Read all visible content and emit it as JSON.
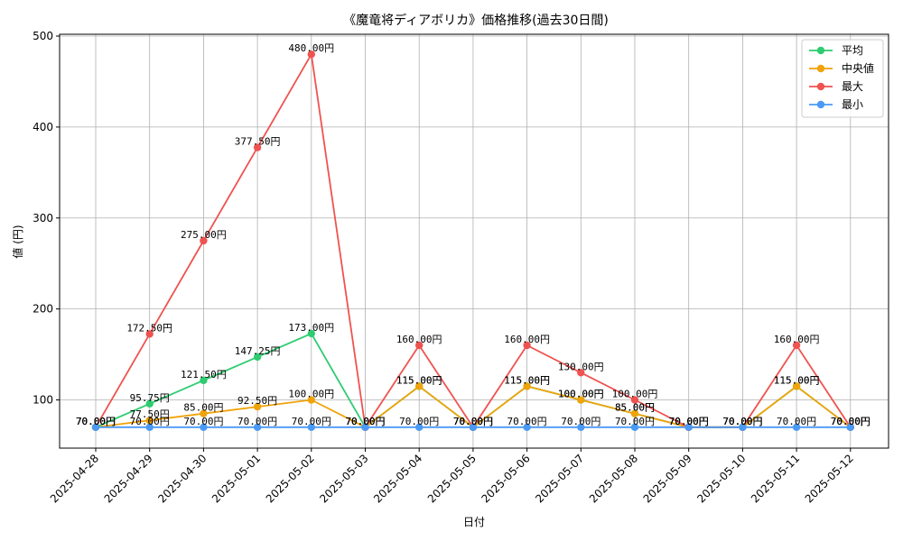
{
  "chart_data": {
    "type": "line",
    "title": "《魔竜将ディアボリカ》価格推移(過去30日間)",
    "xlabel": "日付",
    "ylabel": "値 (円)",
    "ylim": [
      47,
      502
    ],
    "yticks": [
      100,
      200,
      300,
      400,
      500
    ],
    "grid": true,
    "legend_position": "top-right",
    "label_suffix": "円",
    "categories": [
      "2025-04-28",
      "2025-04-29",
      "2025-04-30",
      "2025-05-01",
      "2025-05-02",
      "2025-05-03",
      "2025-05-04",
      "2025-05-05",
      "2025-05-06",
      "2025-05-07",
      "2025-05-08",
      "2025-05-09",
      "2025-05-10",
      "2025-05-11",
      "2025-05-12"
    ],
    "series": [
      {
        "name": "平均",
        "color": "#2ecc71",
        "values": [
          70,
          95.75,
          121.5,
          147.25,
          173,
          70,
          115,
          70,
          115,
          100,
          85,
          70,
          70,
          115,
          70
        ]
      },
      {
        "name": "中央値",
        "color": "#f0a30a",
        "values": [
          70,
          77.5,
          85,
          92.5,
          100,
          70,
          115,
          70,
          115,
          100,
          85,
          70,
          70,
          115,
          70
        ]
      },
      {
        "name": "最大",
        "color": "#ef5350",
        "values": [
          70,
          172.5,
          275,
          377.5,
          480,
          70,
          160,
          70,
          160,
          130,
          100,
          70,
          70,
          160,
          70
        ]
      },
      {
        "name": "最小",
        "color": "#4a9af5",
        "values": [
          70,
          70,
          70,
          70,
          70,
          70,
          70,
          70,
          70,
          70,
          70,
          70,
          70,
          70,
          70
        ]
      }
    ]
  }
}
